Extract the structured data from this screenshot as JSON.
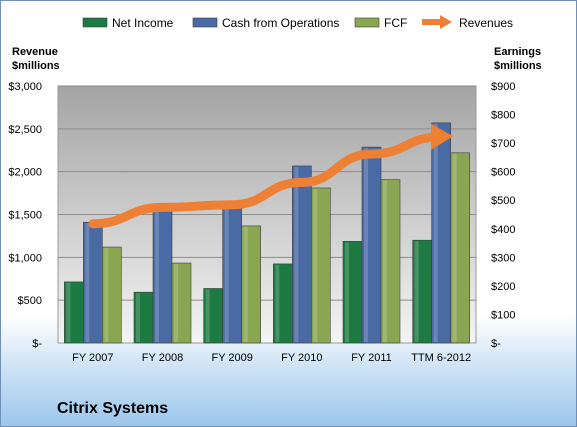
{
  "chart_data": {
    "type": "bar",
    "categories": [
      "FY 2007",
      "FY 2008",
      "FY 2009",
      "FY 2010",
      "FY 2011",
      "TTM 6-2012"
    ],
    "series": [
      {
        "name": "Net Income",
        "axis": "right",
        "color": "#1e7a43",
        "values": [
          214,
          178,
          191,
          277,
          356,
          360
        ]
      },
      {
        "name": "Cash from Operations",
        "axis": "right",
        "color": "#4a6aa3",
        "values": [
          423,
          466,
          487,
          620,
          686,
          771
        ]
      },
      {
        "name": "FCF",
        "axis": "right",
        "color": "#8aa652",
        "values": [
          336,
          280,
          410,
          543,
          572,
          666
        ]
      },
      {
        "name": "Revenues",
        "axis": "left",
        "type": "line",
        "color": "#ee8035",
        "values": [
          1392,
          1583,
          1614,
          1875,
          2206,
          2407
        ]
      }
    ],
    "left_axis": {
      "title_line1": "Revenue",
      "title_line2": "$millions",
      "min": 0,
      "max": 3000,
      "ticks": [
        "$-",
        "$500",
        "$1,000",
        "$1,500",
        "$2,000",
        "$2,500",
        "$3,000"
      ]
    },
    "right_axis": {
      "title_line1": "Earnings",
      "title_line2": "$millions",
      "min": 0,
      "max": 900,
      "ticks": [
        "$-",
        "$100",
        "$200",
        "$300",
        "$400",
        "$500",
        "$600",
        "$700",
        "$800",
        "$900"
      ]
    },
    "legend_position": "top",
    "grid": true,
    "company": "Citrix Systems"
  }
}
